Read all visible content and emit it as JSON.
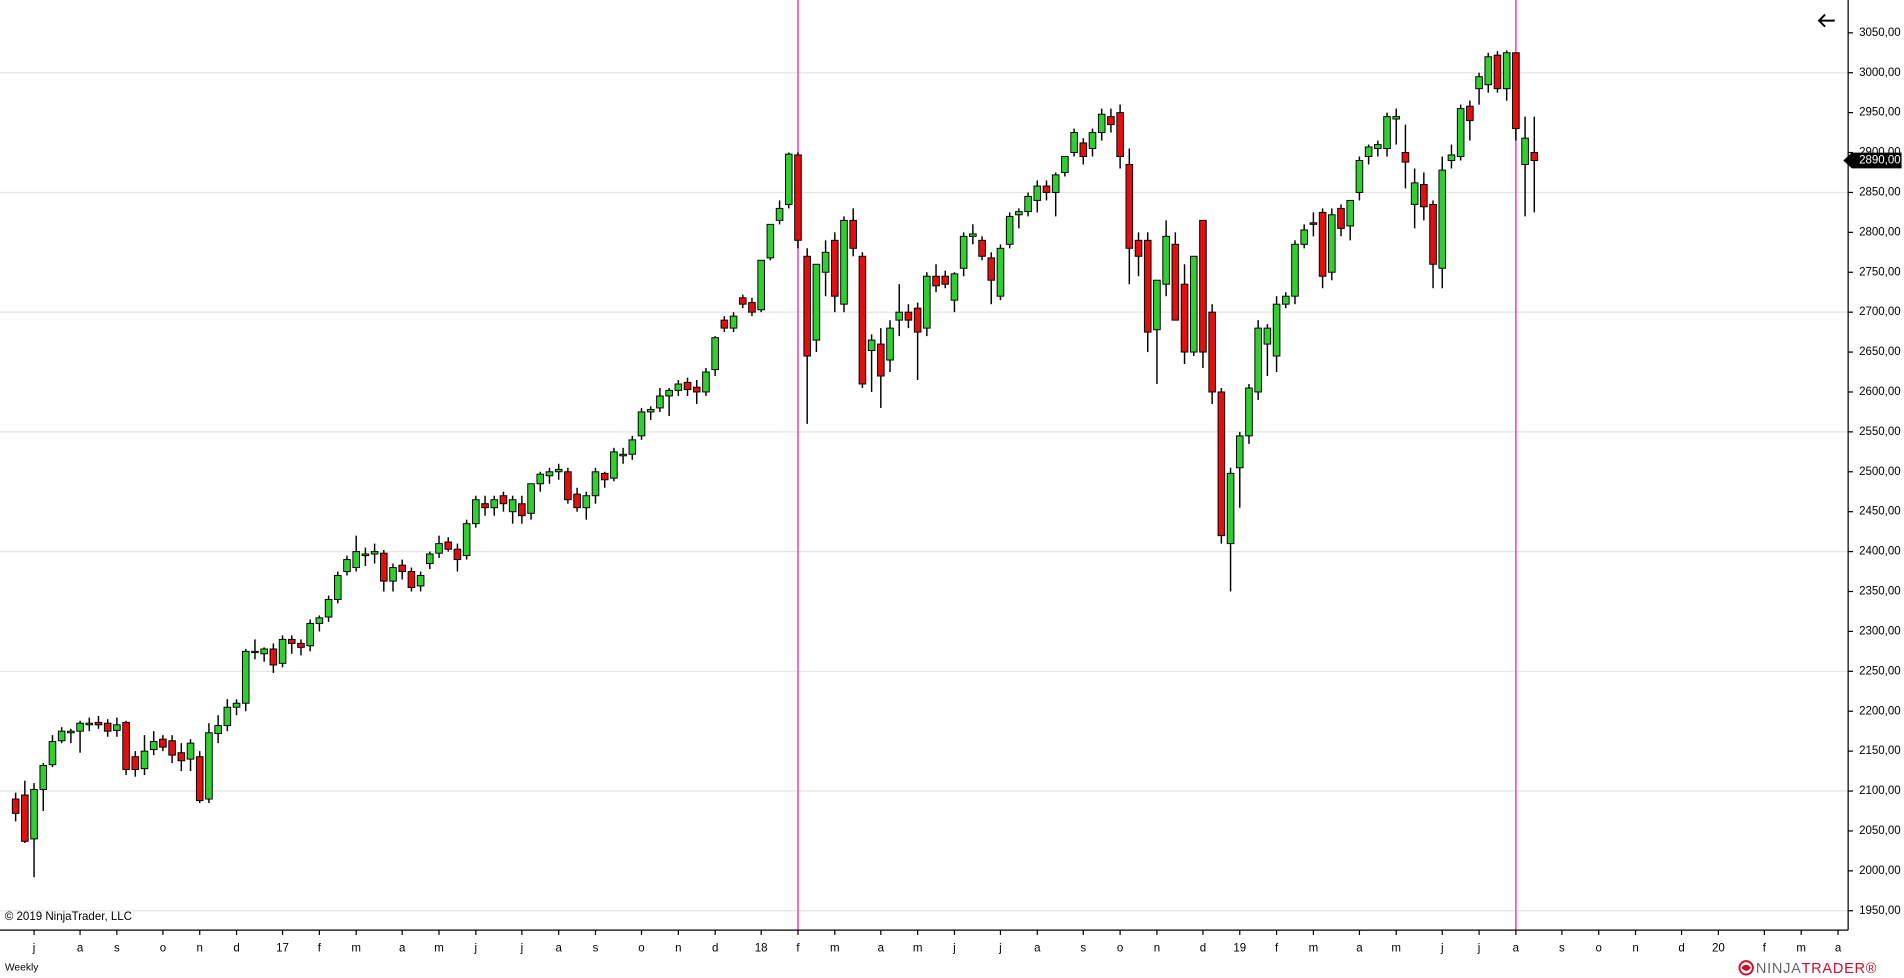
{
  "chart_data": {
    "type": "candlestick",
    "period": "Weekly",
    "copyright": "© 2019 NinjaTrader, LLC",
    "brand": [
      "NINJA",
      "TRADER®"
    ],
    "up_color": "#32cd32",
    "down_color": "#e01010",
    "marker_color": "#ff40c0",
    "xlim": [
      -1.7,
      199.1
    ],
    "ylim": [
      1925.7,
      3091.1
    ],
    "open": [
      2090,
      2095,
      2040,
      2102,
      2133,
      2163,
      2173,
      2175,
      2183,
      2186,
      2185,
      2176,
      2186,
      2143,
      2128,
      2152,
      2165,
      2163,
      2148,
      2140,
      2143,
      2090,
      2172,
      2182,
      2205,
      2210,
      2275,
      2272,
      2278,
      2260,
      2290,
      2285,
      2282,
      2310,
      2318,
      2340,
      2375,
      2380,
      2395,
      2397,
      2398,
      2363,
      2383,
      2375,
      2357,
      2385,
      2398,
      2412,
      2403,
      2395,
      2435,
      2460,
      2455,
      2470,
      2450,
      2460,
      2448,
      2485,
      2495,
      2500,
      2500,
      2472,
      2455,
      2470,
      2498,
      2492,
      2520,
      2522,
      2545,
      2575,
      2580,
      2595,
      2602,
      2612,
      2606,
      2600,
      2628,
      2690,
      2680,
      2718,
      2712,
      2703,
      2768,
      2815,
      2835,
      2897,
      2770,
      2665,
      2750,
      2790,
      2710,
      2815,
      2770,
      2652,
      2660,
      2640,
      2690,
      2700,
      2705,
      2680,
      2745,
      2745,
      2715,
      2755,
      2795,
      2790,
      2768,
      2720,
      2785,
      2822,
      2826,
      2840,
      2858,
      2850,
      2875,
      2900,
      2912,
      2905,
      2925,
      2945,
      2950,
      2885,
      2790,
      2790,
      2678,
      2735,
      2785,
      2735,
      2650,
      2815,
      2700,
      2600,
      2410,
      2505,
      2545,
      2600,
      2660,
      2645,
      2710,
      2720,
      2785,
      2812,
      2825,
      2750,
      2830,
      2808,
      2850,
      2895,
      2905,
      2905,
      2942,
      2900,
      2835,
      2860,
      2835,
      2755,
      2890,
      2895,
      2958,
      2980,
      2985,
      3022,
      2980,
      3025,
      2885,
      2900
    ],
    "high": [
      2098,
      2113,
      2110,
      2135,
      2170,
      2180,
      2178,
      2188,
      2192,
      2194,
      2190,
      2192,
      2188,
      2150,
      2170,
      2175,
      2170,
      2170,
      2160,
      2165,
      2150,
      2185,
      2195,
      2215,
      2215,
      2278,
      2290,
      2280,
      2285,
      2295,
      2295,
      2290,
      2315,
      2320,
      2345,
      2375,
      2395,
      2420,
      2405,
      2410,
      2402,
      2385,
      2390,
      2380,
      2375,
      2400,
      2420,
      2418,
      2410,
      2440,
      2470,
      2470,
      2470,
      2475,
      2470,
      2470,
      2485,
      2500,
      2505,
      2510,
      2505,
      2480,
      2475,
      2505,
      2500,
      2530,
      2530,
      2545,
      2580,
      2582,
      2605,
      2605,
      2615,
      2618,
      2615,
      2630,
      2670,
      2695,
      2700,
      2722,
      2718,
      2765,
      2810,
      2840,
      2900,
      2900,
      2780,
      2760,
      2790,
      2800,
      2820,
      2830,
      2775,
      2672,
      2680,
      2690,
      2735,
      2710,
      2712,
      2750,
      2760,
      2752,
      2750,
      2800,
      2810,
      2795,
      2775,
      2785,
      2825,
      2830,
      2850,
      2865,
      2865,
      2875,
      2895,
      2930,
      2918,
      2930,
      2955,
      2955,
      2960,
      2905,
      2800,
      2800,
      2740,
      2815,
      2800,
      2760,
      2770,
      2815,
      2710,
      2605,
      2505,
      2550,
      2610,
      2690,
      2685,
      2720,
      2725,
      2790,
      2810,
      2825,
      2830,
      2830,
      2835,
      2840,
      2895,
      2910,
      2915,
      2950,
      2955,
      2935,
      2880,
      2875,
      2840,
      2895,
      2910,
      2960,
      2965,
      3000,
      3025,
      3027,
      3028,
      3025,
      2945,
      2945
    ],
    "low": [
      2062,
      2035,
      1992,
      2075,
      2130,
      2160,
      2160,
      2148,
      2175,
      2178,
      2168,
      2168,
      2120,
      2118,
      2120,
      2145,
      2150,
      2135,
      2125,
      2125,
      2085,
      2085,
      2160,
      2175,
      2195,
      2200,
      2265,
      2262,
      2248,
      2255,
      2272,
      2270,
      2275,
      2300,
      2312,
      2335,
      2370,
      2375,
      2382,
      2385,
      2350,
      2350,
      2365,
      2350,
      2350,
      2378,
      2392,
      2400,
      2375,
      2390,
      2430,
      2445,
      2445,
      2450,
      2435,
      2435,
      2440,
      2475,
      2485,
      2490,
      2460,
      2450,
      2440,
      2460,
      2480,
      2488,
      2510,
      2515,
      2540,
      2565,
      2575,
      2570,
      2595,
      2595,
      2585,
      2595,
      2620,
      2675,
      2675,
      2705,
      2695,
      2700,
      2765,
      2810,
      2830,
      2780,
      2560,
      2650,
      2720,
      2700,
      2700,
      2770,
      2605,
      2600,
      2580,
      2625,
      2670,
      2680,
      2615,
      2670,
      2725,
      2730,
      2700,
      2745,
      2785,
      2765,
      2710,
      2715,
      2780,
      2805,
      2820,
      2825,
      2840,
      2820,
      2870,
      2895,
      2885,
      2895,
      2915,
      2925,
      2880,
      2735,
      2745,
      2650,
      2610,
      2720,
      2690,
      2635,
      2645,
      2630,
      2585,
      2410,
      2350,
      2455,
      2535,
      2590,
      2620,
      2625,
      2705,
      2710,
      2780,
      2795,
      2730,
      2740,
      2795,
      2790,
      2840,
      2885,
      2895,
      2895,
      2910,
      2855,
      2805,
      2815,
      2730,
      2730,
      2880,
      2890,
      2915,
      2960,
      2975,
      2975,
      2965,
      2915,
      2820,
      2825
    ],
    "close": [
      2072,
      2037,
      2102,
      2132,
      2162,
      2175,
      2175,
      2185,
      2185,
      2183,
      2175,
      2183,
      2127,
      2127,
      2150,
      2162,
      2155,
      2145,
      2138,
      2160,
      2088,
      2173,
      2182,
      2205,
      2210,
      2275,
      2275,
      2278,
      2258,
      2290,
      2285,
      2280,
      2310,
      2317,
      2340,
      2370,
      2390,
      2400,
      2397,
      2400,
      2363,
      2380,
      2375,
      2355,
      2370,
      2397,
      2410,
      2403,
      2390,
      2435,
      2465,
      2455,
      2465,
      2460,
      2465,
      2445,
      2485,
      2497,
      2500,
      2503,
      2465,
      2455,
      2470,
      2500,
      2490,
      2525,
      2522,
      2540,
      2575,
      2578,
      2595,
      2602,
      2610,
      2603,
      2600,
      2625,
      2668,
      2680,
      2695,
      2710,
      2700,
      2765,
      2810,
      2830,
      2898,
      2790,
      2645,
      2760,
      2775,
      2720,
      2815,
      2780,
      2610,
      2665,
      2620,
      2680,
      2700,
      2690,
      2675,
      2745,
      2733,
      2735,
      2748,
      2795,
      2798,
      2770,
      2740,
      2780,
      2820,
      2826,
      2845,
      2858,
      2850,
      2872,
      2895,
      2925,
      2895,
      2925,
      2948,
      2935,
      2895,
      2780,
      2770,
      2675,
      2740,
      2795,
      2690,
      2650,
      2770,
      2650,
      2600,
      2420,
      2498,
      2545,
      2605,
      2680,
      2680,
      2710,
      2720,
      2785,
      2803,
      2810,
      2745,
      2822,
      2805,
      2840,
      2890,
      2907,
      2910,
      2945,
      2945,
      2888,
      2862,
      2832,
      2760,
      2878,
      2897,
      2955,
      2940,
      2995,
      3020,
      2980,
      3025,
      2930,
      2918,
      2890
    ],
    "markers": [
      85,
      163
    ],
    "last_price": {
      "value": 2890,
      "label": "2890,00"
    },
    "grid_lines": [
      1950,
      2100,
      2250,
      2400,
      2550,
      2700,
      2850,
      3000
    ],
    "yticks": [
      {
        "value": 1950,
        "label": "1950,00"
      },
      {
        "value": 2000,
        "label": "2000,00"
      },
      {
        "value": 2050,
        "label": "2050,00"
      },
      {
        "value": 2100,
        "label": "2100,00"
      },
      {
        "value": 2150,
        "label": "2150,00"
      },
      {
        "value": 2200,
        "label": "2200,00"
      },
      {
        "value": 2250,
        "label": "2250,00"
      },
      {
        "value": 2300,
        "label": "2300,00"
      },
      {
        "value": 2350,
        "label": "2350,00"
      },
      {
        "value": 2400,
        "label": "2400,00"
      },
      {
        "value": 2450,
        "label": "2450,00"
      },
      {
        "value": 2500,
        "label": "2500,00"
      },
      {
        "value": 2550,
        "label": "2550,00"
      },
      {
        "value": 2600,
        "label": "2600,00"
      },
      {
        "value": 2650,
        "label": "2650,00"
      },
      {
        "value": 2700,
        "label": "2700,00"
      },
      {
        "value": 2750,
        "label": "2750,00"
      },
      {
        "value": 2800,
        "label": "2800,00"
      },
      {
        "value": 2850,
        "label": "2850,00"
      },
      {
        "value": 2900,
        "label": "2900,00"
      },
      {
        "value": 2950,
        "label": "2950,00"
      },
      {
        "value": 3000,
        "label": "3000,00"
      },
      {
        "value": 3050,
        "label": "3050,00"
      }
    ],
    "xticks": [
      {
        "value": 2,
        "label": "j"
      },
      {
        "value": 7,
        "label": "a"
      },
      {
        "value": 11,
        "label": "s"
      },
      {
        "value": 16,
        "label": "o"
      },
      {
        "value": 20,
        "label": "n"
      },
      {
        "value": 24,
        "label": "d"
      },
      {
        "value": 29,
        "label": "17"
      },
      {
        "value": 33,
        "label": "f"
      },
      {
        "value": 37,
        "label": "m"
      },
      {
        "value": 42,
        "label": "a"
      },
      {
        "value": 46,
        "label": "m"
      },
      {
        "value": 50,
        "label": "j"
      },
      {
        "value": 55,
        "label": "j"
      },
      {
        "value": 59,
        "label": "a"
      },
      {
        "value": 63,
        "label": "s"
      },
      {
        "value": 68,
        "label": "o"
      },
      {
        "value": 72,
        "label": "n"
      },
      {
        "value": 76,
        "label": "d"
      },
      {
        "value": 81,
        "label": "18"
      },
      {
        "value": 85,
        "label": "f"
      },
      {
        "value": 89,
        "label": "m"
      },
      {
        "value": 94,
        "label": "a"
      },
      {
        "value": 98,
        "label": "m"
      },
      {
        "value": 102,
        "label": "j"
      },
      {
        "value": 107,
        "label": "j"
      },
      {
        "value": 111,
        "label": "a"
      },
      {
        "value": 116,
        "label": "s"
      },
      {
        "value": 120,
        "label": "o"
      },
      {
        "value": 124,
        "label": "n"
      },
      {
        "value": 129,
        "label": "d"
      },
      {
        "value": 133,
        "label": "19"
      },
      {
        "value": 137,
        "label": "f"
      },
      {
        "value": 141,
        "label": "m"
      },
      {
        "value": 146,
        "label": "a"
      },
      {
        "value": 150,
        "label": "m"
      },
      {
        "value": 155,
        "label": "j"
      },
      {
        "value": 159,
        "label": "j"
      },
      {
        "value": 163,
        "label": "a"
      },
      {
        "value": 168,
        "label": "s"
      },
      {
        "value": 172,
        "label": "o"
      },
      {
        "value": 176,
        "label": "n"
      },
      {
        "value": 181,
        "label": "d"
      },
      {
        "value": 185,
        "label": "20"
      },
      {
        "value": 190,
        "label": "f"
      },
      {
        "value": 194,
        "label": "m"
      },
      {
        "value": 198,
        "label": "a"
      }
    ]
  }
}
